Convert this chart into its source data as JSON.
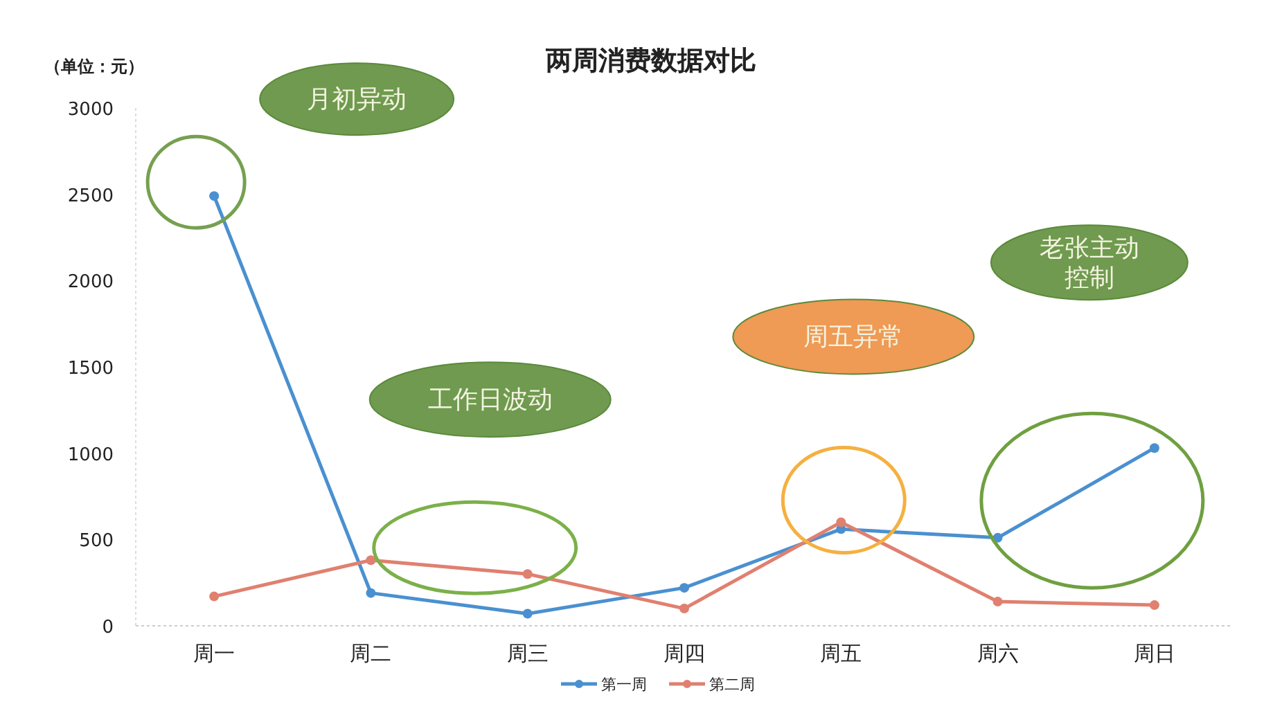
{
  "chart_data": {
    "type": "line",
    "title": "两周消费数据对比",
    "ylabel": "（单位：元）",
    "categories": [
      "周一",
      "周二",
      "周三",
      "周四",
      "周五",
      "周六",
      "周日"
    ],
    "series": [
      {
        "name": "第一周",
        "color": "#4a90d0",
        "values": [
          2490,
          190,
          70,
          220,
          560,
          510,
          1030
        ]
      },
      {
        "name": "第二周",
        "color": "#e08070",
        "values": [
          170,
          380,
          300,
          100,
          600,
          140,
          120
        ]
      }
    ],
    "ylim": [
      0,
      3000
    ],
    "yticks": [
      0,
      500,
      1000,
      1500,
      2000,
      2500,
      3000
    ],
    "marker": "circle",
    "legend": "bottom",
    "annotations": [
      "月初异动",
      "工作日波动",
      "周五异常",
      "老张主动控制"
    ]
  }
}
